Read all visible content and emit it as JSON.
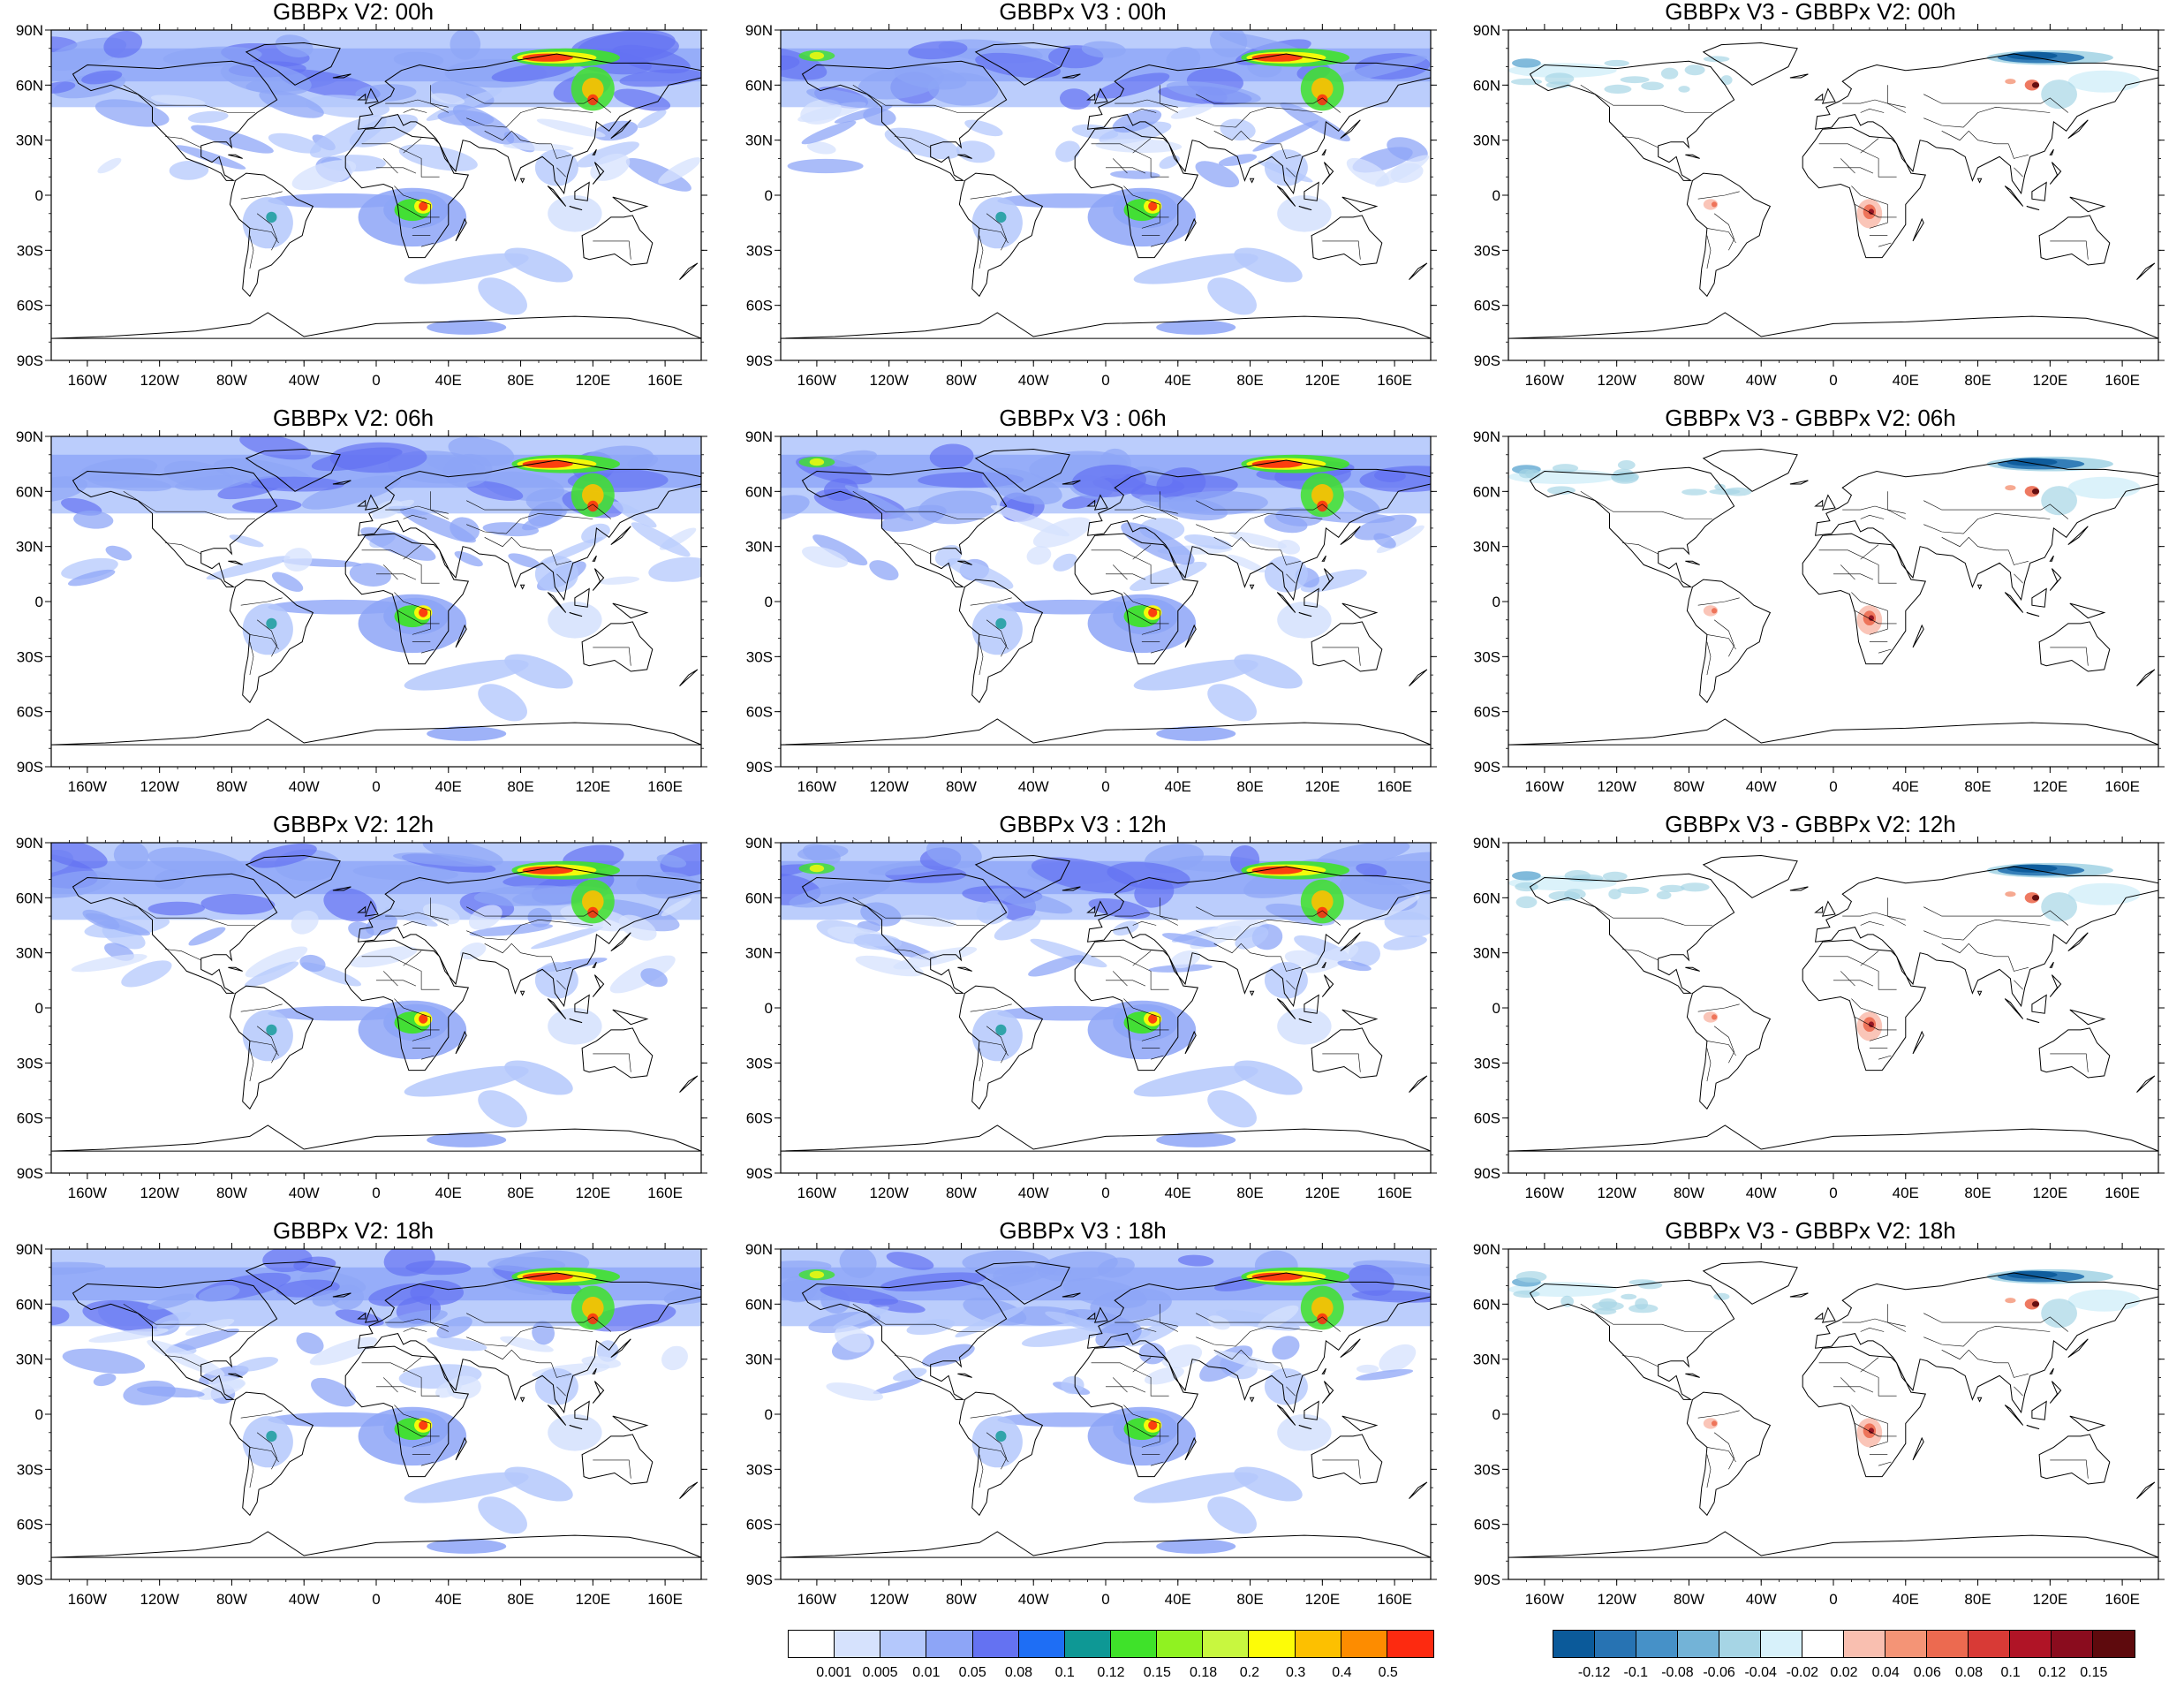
{
  "panels": [
    {
      "title": "GBBPx V2: 00h",
      "kind": "abs",
      "time": "00h"
    },
    {
      "title": "GBBPx V3 : 00h",
      "kind": "abs",
      "time": "00h"
    },
    {
      "title": "GBBPx V3 - GBBPx V2: 00h",
      "kind": "diff",
      "time": "00h"
    },
    {
      "title": "GBBPx V2: 06h",
      "kind": "abs",
      "time": "06h"
    },
    {
      "title": "GBBPx V3 : 06h",
      "kind": "abs",
      "time": "06h"
    },
    {
      "title": "GBBPx V3 - GBBPx V2: 06h",
      "kind": "diff",
      "time": "06h"
    },
    {
      "title": "GBBPx V2: 12h",
      "kind": "abs",
      "time": "12h"
    },
    {
      "title": "GBBPx V3 : 12h",
      "kind": "abs",
      "time": "12h"
    },
    {
      "title": "GBBPx V3 - GBBPx V2: 12h",
      "kind": "diff",
      "time": "12h"
    },
    {
      "title": "GBBPx V2: 18h",
      "kind": "abs",
      "time": "18h"
    },
    {
      "title": "GBBPx V3 : 18h",
      "kind": "abs",
      "time": "18h"
    },
    {
      "title": "GBBPx V3 - GBBPx V2: 18h",
      "kind": "diff",
      "time": "18h"
    }
  ],
  "lat_ticks": [
    "90N",
    "60N",
    "30N",
    "0",
    "30S",
    "60S",
    "90S"
  ],
  "lon_ticks": [
    "160W",
    "120W",
    "80W",
    "40W",
    "0",
    "40E",
    "80E",
    "120E",
    "160E"
  ],
  "colorbar_abs": {
    "colors": [
      "#ffffff",
      "#d6e2fd",
      "#b4c8fc",
      "#8da5f7",
      "#6472f2",
      "#1e6ef5",
      "#0e9895",
      "#3fe22a",
      "#90f221",
      "#c8f73f",
      "#fdfc07",
      "#fdc000",
      "#fd8c00",
      "#fd2a10"
    ],
    "labels": [
      "0.001",
      "0.005",
      "0.01",
      "0.05",
      "0.08",
      "0.1",
      "0.12",
      "0.15",
      "0.18",
      "0.2",
      "0.3",
      "0.4",
      "0.5"
    ]
  },
  "colorbar_diff": {
    "colors": [
      "#0b5a9a",
      "#2773b3",
      "#4691c8",
      "#73b3d7",
      "#a6d5e5",
      "#d7f1fa",
      "#ffffff",
      "#f9bfb0",
      "#f49476",
      "#ec6a50",
      "#d83a36",
      "#b01426",
      "#8a0c1e",
      "#5e0a0d"
    ],
    "labels": [
      "-0.12",
      "-0.1",
      "-0.08",
      "-0.06",
      "-0.04",
      "-0.02",
      "0.02",
      "0.04",
      "0.06",
      "0.08",
      "0.1",
      "0.12",
      "0.15"
    ]
  }
}
